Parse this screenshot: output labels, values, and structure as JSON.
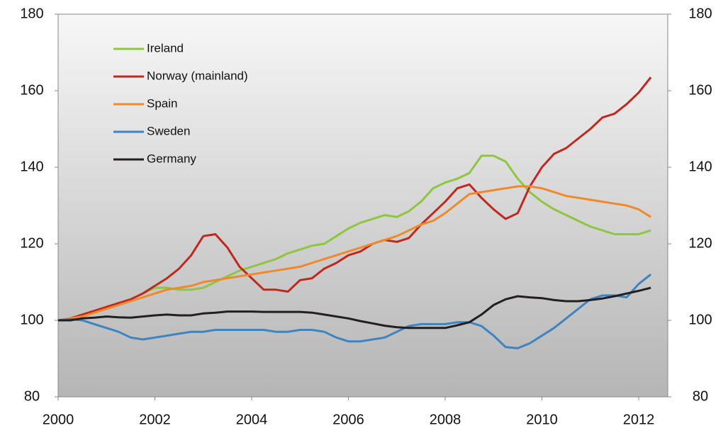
{
  "chart_data": {
    "type": "line",
    "x": [
      2000,
      2000.25,
      2000.5,
      2000.75,
      2001,
      2001.25,
      2001.5,
      2001.75,
      2002,
      2002.25,
      2002.5,
      2002.75,
      2003,
      2003.25,
      2003.5,
      2003.75,
      2004,
      2004.25,
      2004.5,
      2004.75,
      2005,
      2005.25,
      2005.5,
      2005.75,
      2006,
      2006.25,
      2006.5,
      2006.75,
      2007,
      2007.25,
      2007.5,
      2007.75,
      2008,
      2008.25,
      2008.5,
      2008.75,
      2009,
      2009.25,
      2009.5,
      2009.75,
      2010,
      2010.25,
      2010.5,
      2010.75,
      2011,
      2011.25,
      2011.5,
      2011.75,
      2012,
      2012.25
    ],
    "series": [
      {
        "name": "Ireland",
        "color": "#8dc63f",
        "values": [
          100,
          100.3,
          101,
          102,
          103,
          104,
          105.5,
          107,
          108.5,
          108.5,
          108,
          108,
          108.5,
          110,
          111.5,
          113,
          114,
          115,
          116,
          117.5,
          118.5,
          119.5,
          120,
          122,
          124,
          125.5,
          126.5,
          127.5,
          127,
          128.5,
          131,
          134.5,
          136,
          137,
          138.5,
          143,
          143,
          141.5,
          137,
          133.5,
          131,
          129,
          127.5,
          126,
          124.5,
          123.5,
          122.5,
          122.5,
          122.5,
          123.5
        ]
      },
      {
        "name": "Norway (mainland)",
        "color": "#c0281e",
        "values": [
          100,
          100.5,
          101.5,
          102.5,
          103.5,
          104.5,
          105.5,
          107,
          109,
          111,
          113.5,
          117,
          122,
          122.5,
          119,
          114,
          111,
          108,
          108,
          107.5,
          110.5,
          111,
          113.5,
          115,
          117,
          118,
          120,
          121,
          120.5,
          121.5,
          125,
          128,
          131,
          134.5,
          135.5,
          132,
          129,
          126.5,
          128,
          135,
          140,
          143.5,
          145,
          147.5,
          150,
          153,
          154,
          156.5,
          159.5,
          163.5
        ]
      },
      {
        "name": "Spain",
        "color": "#f0892a",
        "values": [
          100,
          100.5,
          101,
          102,
          103,
          104,
          105,
          106,
          107,
          108,
          108.5,
          109,
          110,
          110.5,
          111,
          111.5,
          112,
          112.5,
          113,
          113.5,
          114,
          115,
          116,
          117,
          118,
          119,
          120,
          121,
          122,
          123.5,
          125,
          126,
          128,
          130.5,
          133,
          133.5,
          134,
          134.5,
          135,
          135,
          134.5,
          133.5,
          132.5,
          132,
          131.5,
          131,
          130.5,
          130,
          129,
          127
        ]
      },
      {
        "name": "Sweden",
        "color": "#3d84c0",
        "values": [
          100,
          100.3,
          100,
          99,
          98,
          97,
          95.5,
          95,
          95.5,
          96,
          96.5,
          97,
          97,
          97.5,
          97.5,
          97.5,
          97.5,
          97.5,
          97,
          97,
          97.5,
          97.5,
          97,
          95.5,
          94.5,
          94.5,
          95,
          95.5,
          97,
          98.5,
          99,
          99,
          99,
          99.5,
          99.5,
          98.5,
          96,
          93,
          92.7,
          94,
          96,
          98,
          100.5,
          103,
          105.5,
          106.5,
          106.5,
          106,
          109.5,
          112
        ]
      },
      {
        "name": "Germany",
        "color": "#231f20",
        "values": [
          100,
          100,
          100.5,
          100.7,
          101,
          100.8,
          100.7,
          101,
          101.3,
          101.5,
          101.3,
          101.3,
          101.8,
          102,
          102.3,
          102.3,
          102.3,
          102.2,
          102.2,
          102.2,
          102.2,
          102,
          101.5,
          101,
          100.5,
          99.8,
          99.2,
          98.6,
          98.2,
          98,
          98,
          98,
          98,
          98.7,
          99.5,
          101.5,
          104,
          105.5,
          106.3,
          106,
          105.8,
          105.3,
          105,
          105,
          105.3,
          105.7,
          106.3,
          107,
          107.7,
          108.5
        ]
      }
    ],
    "xlim": [
      2000,
      2012.6
    ],
    "xticks": [
      2000,
      2002,
      2004,
      2006,
      2008,
      2010,
      2012
    ],
    "ylim": [
      80,
      180
    ],
    "yticks": [
      80,
      100,
      120,
      140,
      160,
      180
    ],
    "y2lim": [
      80,
      180
    ],
    "y2ticks": [
      80,
      100,
      120,
      140,
      160,
      180
    ],
    "legend": "upper left"
  }
}
